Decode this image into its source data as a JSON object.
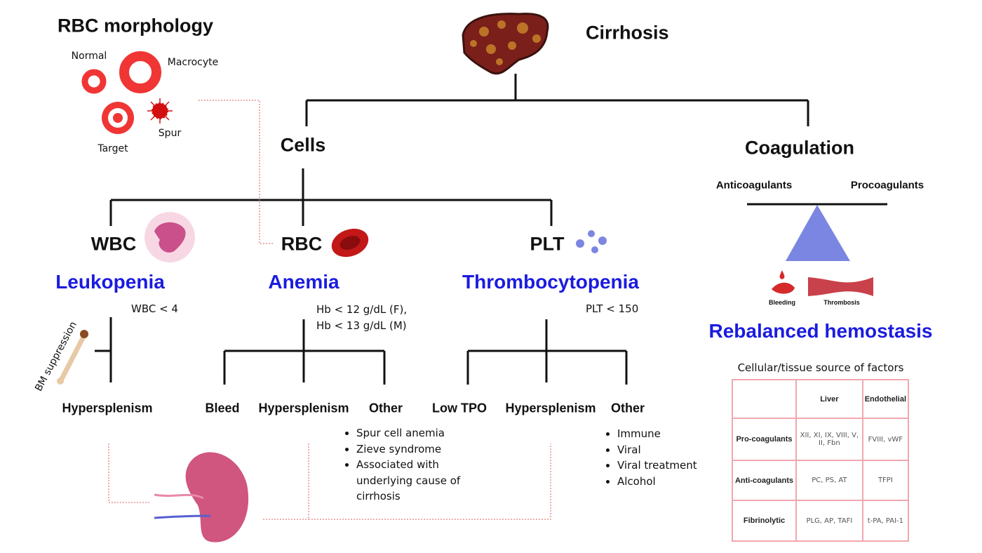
{
  "title": "Cirrhosis",
  "rbc_morphology": {
    "title": "RBC morphology",
    "labels": [
      "Normal",
      "Macrocyte",
      "Target",
      "Spur"
    ]
  },
  "cells": {
    "label": "Cells",
    "branches": [
      {
        "label": "WBC",
        "condition": "Leukopenia",
        "threshold": [
          "WBC < 4"
        ],
        "side_label": "BM suppression",
        "causes": [
          "Hypersplenism"
        ]
      },
      {
        "label": "RBC",
        "condition": "Anemia",
        "threshold": [
          "Hb < 12 g/dL (F),",
          "Hb < 13 g/dL (M)"
        ],
        "causes": [
          "Bleed",
          "Hypersplenism",
          "Other"
        ],
        "other": [
          "Spur cell anemia",
          "Zieve syndrome",
          "Associated with underlying cause of cirrhosis"
        ]
      },
      {
        "label": "PLT",
        "condition": "Thrombocytopenia",
        "threshold": [
          "PLT < 150"
        ],
        "causes": [
          "Low TPO",
          "Hypersplenism",
          "Other"
        ],
        "other": [
          "Immune",
          "Viral",
          "Viral treatment",
          "Alcohol"
        ]
      }
    ]
  },
  "coagulation": {
    "label": "Coagulation",
    "left": "Anticoagulants",
    "right": "Procoagulants",
    "icons": [
      "Bleeding",
      "Thrombosis"
    ],
    "result": "Rebalanced hemostasis",
    "table": {
      "caption": "Cellular/tissue source of factors",
      "header": [
        "Liver",
        "Endothelial"
      ],
      "rows": [
        [
          "Pro-coagulants",
          "XII, XI, IX, VIII, V, II, Fbn",
          "FVIII, vWF"
        ],
        [
          "Anti-coagulants",
          "PC, PS, AT",
          "TFPI"
        ],
        [
          "Fibrinolytic",
          "PLG, AP, TAFI",
          "t-PA, PAI-1"
        ]
      ]
    }
  }
}
